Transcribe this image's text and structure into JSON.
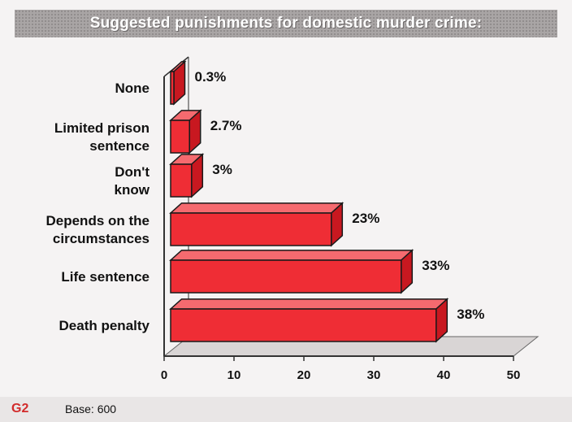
{
  "title": "Suggested punishments for domestic murder crime:",
  "footer": {
    "logo": "G2",
    "base": "Base: 600"
  },
  "colors": {
    "bar_front": "#ef2d35",
    "bar_top": "#f56a6f",
    "bar_side": "#c81820",
    "bar_stroke": "#1a1a1a",
    "floor": "#d9d5d5",
    "title_bg": "#a9a5a5"
  },
  "chart_data": {
    "type": "bar",
    "orientation": "horizontal",
    "categories": [
      [
        "None"
      ],
      [
        "Limited prison",
        "sentence"
      ],
      [
        "Don't",
        "know"
      ],
      [
        "Depends on the",
        "circumstances"
      ],
      [
        "Life sentence"
      ],
      [
        "Death penalty"
      ]
    ],
    "values": [
      0.3,
      2.7,
      3,
      23,
      33,
      38
    ],
    "value_labels": [
      "0.3%",
      "2.7%",
      "3%",
      "23%",
      "33%",
      "38%"
    ],
    "xlim": [
      0,
      50
    ],
    "xticks": [
      0,
      10,
      20,
      30,
      40,
      50
    ],
    "title": "Suggested punishments for domestic murder crime:",
    "xlabel": "",
    "ylabel": ""
  }
}
